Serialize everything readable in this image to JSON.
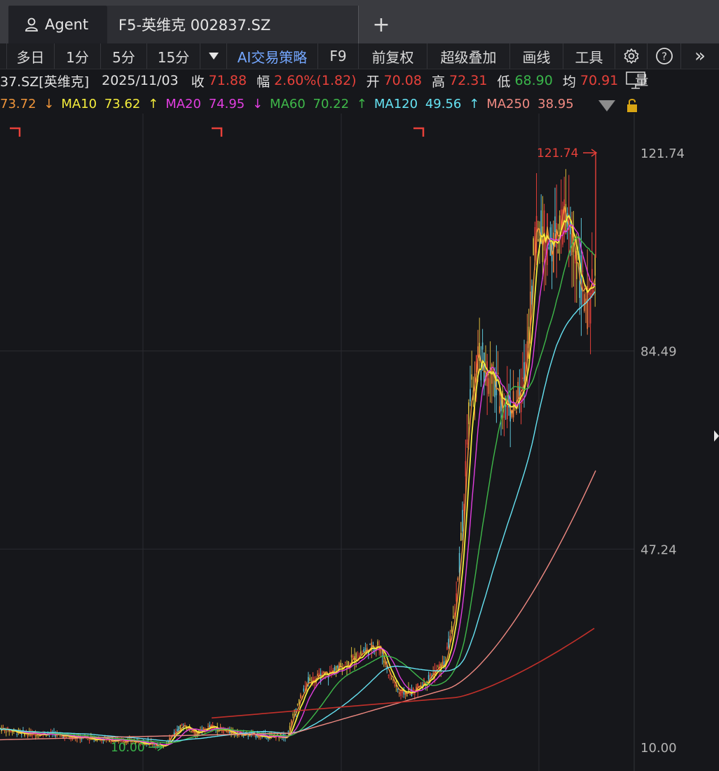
{
  "tabs": {
    "agent_label": "Agent",
    "stock_label": "F5-英维克 002837.SZ",
    "add_label": "+"
  },
  "toolbar": {
    "items": [
      "多日",
      "1分",
      "5分",
      "15分"
    ],
    "ai_label": "AI交易策略",
    "f9_label": "F9",
    "adjust_label": "前复权",
    "overlay_label": "超级叠加",
    "draw_label": "画线",
    "tools_label": "工具",
    "more_label": "»"
  },
  "quote": {
    "symbol": "37.SZ[英维克]",
    "date": "2025/11/03",
    "close_label": "收",
    "close": "71.88",
    "change_label": "幅",
    "change": "2.60%(1.82)",
    "open_label": "开",
    "open": "70.08",
    "high_label": "高",
    "high": "72.31",
    "low_label": "低",
    "low": "68.90",
    "avg_label": "均",
    "avg": "70.91",
    "volume_label": "量"
  },
  "ma": [
    {
      "label": "",
      "value": "73.72",
      "arrow": "↓",
      "color": "#f0953a"
    },
    {
      "label": "MA10",
      "value": "73.62",
      "arrow": "↑",
      "color": "#f5ee3c"
    },
    {
      "label": "MA20",
      "value": "74.95",
      "arrow": "↓",
      "color": "#e13ee0"
    },
    {
      "label": "MA60",
      "value": "70.22",
      "arrow": "↑",
      "color": "#3fb94a"
    },
    {
      "label": "MA120",
      "value": "49.56",
      "arrow": "↑",
      "color": "#66e3f3"
    },
    {
      "label": "MA250",
      "value": "38.95",
      "arrow": "",
      "color": "#f08a82"
    }
  ],
  "axis": {
    "ticks": [
      "121.74",
      "84.49",
      "47.24",
      "10.00"
    ],
    "max_marker": "121.74",
    "min_marker": "10.00"
  },
  "colors": {
    "up": "#e8413a",
    "down": "#39b54a",
    "background": "#16171b"
  }
}
